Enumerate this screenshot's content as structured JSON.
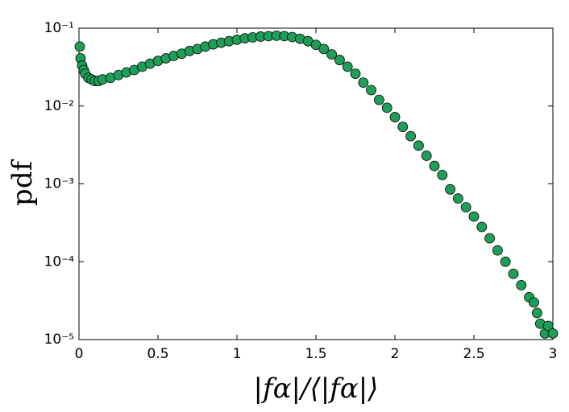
{
  "chart_data": {
    "type": "scatter",
    "xlabel": "|fα|/⟨|fα|⟩",
    "ylabel": "pdf",
    "xlim": [
      0,
      3
    ],
    "ylim": [
      1e-05,
      0.1
    ],
    "log_y": true,
    "grid": false,
    "xticks": [
      0,
      0.5,
      1,
      1.5,
      2,
      2.5,
      3
    ],
    "yticks": [
      {
        "value": 1e-05,
        "label": "10⁻⁵"
      },
      {
        "value": 0.0001,
        "label": "10⁻⁴"
      },
      {
        "value": 0.001,
        "label": "10⁻³"
      },
      {
        "value": 0.01,
        "label": "10⁻²"
      },
      {
        "value": 0.1,
        "label": "10⁻¹"
      }
    ],
    "series": [
      {
        "color": "#1f9e5a",
        "x": [
          0.005,
          0.01,
          0.02,
          0.03,
          0.04,
          0.06,
          0.08,
          0.1,
          0.125,
          0.15,
          0.2,
          0.25,
          0.3,
          0.35,
          0.4,
          0.45,
          0.5,
          0.55,
          0.6,
          0.65,
          0.7,
          0.75,
          0.8,
          0.85,
          0.9,
          0.95,
          1.0,
          1.05,
          1.1,
          1.15,
          1.2,
          1.25,
          1.3,
          1.35,
          1.4,
          1.45,
          1.5,
          1.55,
          1.6,
          1.65,
          1.7,
          1.75,
          1.8,
          1.85,
          1.9,
          1.95,
          2.0,
          2.05,
          2.1,
          2.15,
          2.2,
          2.25,
          2.3,
          2.35,
          2.4,
          2.45,
          2.5,
          2.55,
          2.6,
          2.65,
          2.7,
          2.75,
          2.8,
          2.85,
          2.88,
          2.9,
          2.92,
          2.95,
          2.97,
          3.0
        ],
        "values": [
          0.058,
          0.041,
          0.033,
          0.029,
          0.026,
          0.023,
          0.022,
          0.021,
          0.021,
          0.022,
          0.023,
          0.025,
          0.027,
          0.029,
          0.032,
          0.035,
          0.038,
          0.041,
          0.044,
          0.047,
          0.051,
          0.054,
          0.058,
          0.062,
          0.065,
          0.068,
          0.071,
          0.074,
          0.076,
          0.078,
          0.079,
          0.08,
          0.079,
          0.077,
          0.073,
          0.068,
          0.061,
          0.054,
          0.046,
          0.039,
          0.032,
          0.026,
          0.02,
          0.016,
          0.012,
          0.0095,
          0.0072,
          0.0054,
          0.0041,
          0.0031,
          0.0023,
          0.0017,
          0.0013,
          0.00085,
          0.00065,
          0.0005,
          0.00038,
          0.00028,
          0.0002,
          0.00014,
          0.0001,
          7e-05,
          5e-05,
          3.5e-05,
          3e-05,
          2.2e-05,
          1.6e-05,
          1.2e-05,
          1.5e-05,
          1.2e-05
        ]
      }
    ]
  }
}
